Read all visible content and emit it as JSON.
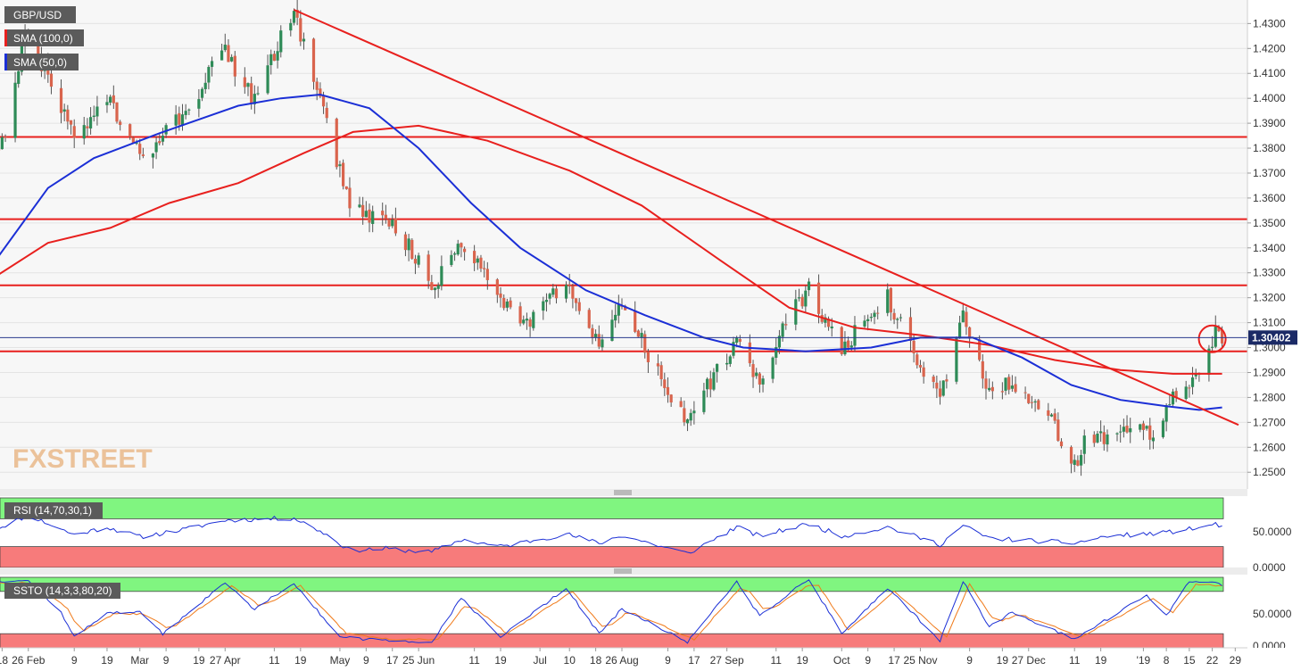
{
  "panels": {
    "main": {
      "instrument_label": "GBP/USD",
      "indicators": [
        {
          "label": "SMA (100,0)",
          "color": "#e8201e"
        },
        {
          "label": "SMA (50,0)",
          "color": "#1b2fd6"
        }
      ],
      "watermark": "FXSTREET",
      "last_price_label": "1.30402",
      "horizontal_levels": [
        1.3845,
        1.3515,
        1.325,
        1.2985
      ],
      "highlight_circle": {
        "date": "2019-01-22",
        "price": 1.3035
      }
    },
    "rsi": {
      "label": "RSI (14,70,30,1)",
      "ticks": [
        "50.0000",
        "0.0000"
      ]
    },
    "ssto": {
      "label": "SSTO (14,3,3,80,20)",
      "ticks": [
        "50.0000",
        "0.0000"
      ]
    }
  },
  "chart_data": {
    "type": "candlestick",
    "title": "GBP/USD",
    "y_axis": {
      "range": [
        1.244,
        1.438
      ],
      "ticks": [
        "1.4300",
        "1.4200",
        "1.4100",
        "1.4000",
        "1.3900",
        "1.3800",
        "1.3700",
        "1.3600",
        "1.3500",
        "1.3400",
        "1.3300",
        "1.3200",
        "1.3100",
        "1.3000",
        "1.2900",
        "1.2800",
        "1.2700",
        "1.2600",
        "1.2500"
      ]
    },
    "x_axis": {
      "range": [
        "2018-01-16",
        "2019-01-30"
      ],
      "ticks": [
        {
          "label": "18",
          "date": "2018-01-18"
        },
        {
          "label": "26 Feb",
          "date": "2018-01-26"
        },
        {
          "label": "9",
          "date": "2018-02-09"
        },
        {
          "label": "19",
          "date": "2018-02-19"
        },
        {
          "label": "Mar",
          "date": "2018-03-01"
        },
        {
          "label": "9",
          "date": "2018-03-09"
        },
        {
          "label": "19",
          "date": "2018-03-19"
        },
        {
          "label": "27 Apr",
          "date": "2018-03-27"
        },
        {
          "label": "11",
          "date": "2018-04-11"
        },
        {
          "label": "19",
          "date": "2018-04-19"
        },
        {
          "label": "May",
          "date": "2018-05-01"
        },
        {
          "label": "9",
          "date": "2018-05-09"
        },
        {
          "label": "17",
          "date": "2018-05-17"
        },
        {
          "label": "25 Jun",
          "date": "2018-05-25"
        },
        {
          "label": "11",
          "date": "2018-06-11"
        },
        {
          "label": "19",
          "date": "2018-06-19"
        },
        {
          "label": "Jul",
          "date": "2018-07-01"
        },
        {
          "label": "10",
          "date": "2018-07-10"
        },
        {
          "label": "18",
          "date": "2018-07-18"
        },
        {
          "label": "26 Aug",
          "date": "2018-07-26"
        },
        {
          "label": "9",
          "date": "2018-08-09"
        },
        {
          "label": "17",
          "date": "2018-08-17"
        },
        {
          "label": "27 Sep",
          "date": "2018-08-27"
        },
        {
          "label": "11",
          "date": "2018-09-11"
        },
        {
          "label": "19",
          "date": "2018-09-19"
        },
        {
          "label": "Oct",
          "date": "2018-10-01"
        },
        {
          "label": "9",
          "date": "2018-10-09"
        },
        {
          "label": "17",
          "date": "2018-10-17"
        },
        {
          "label": "25 Nov",
          "date": "2018-10-25"
        },
        {
          "label": "9",
          "date": "2018-11-09"
        },
        {
          "label": "19",
          "date": "2018-11-19"
        },
        {
          "label": "27 Dec",
          "date": "2018-11-27"
        },
        {
          "label": "11",
          "date": "2018-12-11"
        },
        {
          "label": "19",
          "date": "2018-12-19"
        },
        {
          "label": "'19",
          "date": "2019-01-01"
        },
        {
          "label": "8",
          "date": "2019-01-08"
        },
        {
          "label": "15",
          "date": "2019-01-15"
        },
        {
          "label": "22",
          "date": "2019-01-22"
        },
        {
          "label": "29",
          "date": "2019-01-29"
        }
      ]
    },
    "price_path": [
      [
        "2018-01-16",
        1.376
      ],
      [
        "2018-01-19",
        1.387
      ],
      [
        "2018-01-25",
        1.427
      ],
      [
        "2018-01-31",
        1.412
      ],
      [
        "2018-02-09",
        1.383
      ],
      [
        "2018-02-19",
        1.402
      ],
      [
        "2018-03-01",
        1.376
      ],
      [
        "2018-03-15",
        1.395
      ],
      [
        "2018-03-27",
        1.42
      ],
      [
        "2018-04-04",
        1.4
      ],
      [
        "2018-04-17",
        1.434
      ],
      [
        "2018-04-26",
        1.393
      ],
      [
        "2018-05-04",
        1.356
      ],
      [
        "2018-05-15",
        1.352
      ],
      [
        "2018-05-22",
        1.34
      ],
      [
        "2018-05-29",
        1.325
      ],
      [
        "2018-06-07",
        1.342
      ],
      [
        "2018-06-19",
        1.318
      ],
      [
        "2018-06-28",
        1.31
      ],
      [
        "2018-07-09",
        1.326
      ],
      [
        "2018-07-19",
        1.301
      ],
      [
        "2018-07-26",
        1.317
      ],
      [
        "2018-08-02",
        1.3
      ],
      [
        "2018-08-10",
        1.278
      ],
      [
        "2018-08-15",
        1.27
      ],
      [
        "2018-08-21",
        1.285
      ],
      [
        "2018-08-30",
        1.302
      ],
      [
        "2018-09-06",
        1.285
      ],
      [
        "2018-09-13",
        1.309
      ],
      [
        "2018-09-21",
        1.324
      ],
      [
        "2018-09-27",
        1.308
      ],
      [
        "2018-10-01",
        1.298
      ],
      [
        "2018-10-09",
        1.314
      ],
      [
        "2018-10-15",
        1.32
      ],
      [
        "2018-10-22",
        1.301
      ],
      [
        "2018-10-31",
        1.278
      ],
      [
        "2018-11-07",
        1.315
      ],
      [
        "2018-11-15",
        1.281
      ],
      [
        "2018-11-22",
        1.287
      ],
      [
        "2018-12-03",
        1.273
      ],
      [
        "2018-12-11",
        1.252
      ],
      [
        "2018-12-14",
        1.261
      ],
      [
        "2018-12-21",
        1.264
      ],
      [
        "2019-01-02",
        1.27
      ],
      [
        "2019-01-03",
        1.262
      ],
      [
        "2019-01-08",
        1.277
      ],
      [
        "2019-01-15",
        1.286
      ],
      [
        "2019-01-18",
        1.288
      ],
      [
        "2019-01-21",
        1.296
      ],
      [
        "2019-01-23",
        1.306
      ],
      [
        "2019-01-25",
        1.304
      ]
    ],
    "series": [
      {
        "name": "SMA (100,0)",
        "color": "#e8201e",
        "points": [
          [
            "2018-01-16",
            1.3285
          ],
          [
            "2018-02-01",
            1.342
          ],
          [
            "2018-02-20",
            1.348
          ],
          [
            "2018-03-10",
            1.358
          ],
          [
            "2018-03-31",
            1.366
          ],
          [
            "2018-04-20",
            1.378
          ],
          [
            "2018-05-05",
            1.3865
          ],
          [
            "2018-05-25",
            1.389
          ],
          [
            "2018-06-15",
            1.383
          ],
          [
            "2018-07-10",
            1.371
          ],
          [
            "2018-08-01",
            1.357
          ],
          [
            "2018-08-25",
            1.335
          ],
          [
            "2018-09-15",
            1.316
          ],
          [
            "2018-10-05",
            1.308
          ],
          [
            "2018-10-25",
            1.305
          ],
          [
            "2018-11-15",
            1.301
          ],
          [
            "2018-12-05",
            1.295
          ],
          [
            "2018-12-25",
            1.291
          ],
          [
            "2019-01-10",
            1.2895
          ],
          [
            "2019-01-25",
            1.2895
          ]
        ]
      },
      {
        "name": "SMA (50,0)",
        "color": "#1b2fd6",
        "points": [
          [
            "2018-01-16",
            1.335
          ],
          [
            "2018-02-01",
            1.364
          ],
          [
            "2018-02-15",
            1.376
          ],
          [
            "2018-03-07",
            1.386
          ],
          [
            "2018-03-31",
            1.397
          ],
          [
            "2018-04-13",
            1.4
          ],
          [
            "2018-04-25",
            1.4015
          ],
          [
            "2018-05-10",
            1.396
          ],
          [
            "2018-05-25",
            1.38
          ],
          [
            "2018-06-10",
            1.358
          ],
          [
            "2018-06-25",
            1.34
          ],
          [
            "2018-07-15",
            1.323
          ],
          [
            "2018-08-02",
            1.313
          ],
          [
            "2018-08-20",
            1.304
          ],
          [
            "2018-09-01",
            1.3
          ],
          [
            "2018-09-20",
            1.2985
          ],
          [
            "2018-10-10",
            1.3
          ],
          [
            "2018-10-25",
            1.304
          ],
          [
            "2018-11-10",
            1.304
          ],
          [
            "2018-11-25",
            1.296
          ],
          [
            "2018-12-10",
            1.285
          ],
          [
            "2018-12-25",
            1.279
          ],
          [
            "2019-01-08",
            1.2765
          ],
          [
            "2019-01-18",
            1.275
          ],
          [
            "2019-01-25",
            1.276
          ]
        ]
      },
      {
        "name": "Downtrend line",
        "color": "#e8201e",
        "points": [
          [
            "2018-04-17",
            1.4355
          ],
          [
            "2019-01-30",
            1.269
          ]
        ]
      }
    ],
    "rsi": {
      "range": [
        0,
        100
      ],
      "overbought": 70,
      "oversold": 30,
      "points": [
        [
          "2018-01-16",
          55
        ],
        [
          "2018-01-26",
          75
        ],
        [
          "2018-02-09",
          47
        ],
        [
          "2018-02-19",
          58
        ],
        [
          "2018-03-01",
          44
        ],
        [
          "2018-03-15",
          55
        ],
        [
          "2018-03-27",
          68
        ],
        [
          "2018-04-17",
          71
        ],
        [
          "2018-04-26",
          50
        ],
        [
          "2018-05-04",
          25
        ],
        [
          "2018-05-15",
          27
        ],
        [
          "2018-05-29",
          22
        ],
        [
          "2018-06-07",
          40
        ],
        [
          "2018-06-19",
          30
        ],
        [
          "2018-07-09",
          48
        ],
        [
          "2018-07-19",
          35
        ],
        [
          "2018-07-26",
          46
        ],
        [
          "2018-08-15",
          20
        ],
        [
          "2018-08-30",
          58
        ],
        [
          "2018-09-06",
          45
        ],
        [
          "2018-09-21",
          63
        ],
        [
          "2018-10-01",
          45
        ],
        [
          "2018-10-15",
          58
        ],
        [
          "2018-10-31",
          33
        ],
        [
          "2018-11-07",
          60
        ],
        [
          "2018-11-15",
          42
        ],
        [
          "2018-12-11",
          35
        ],
        [
          "2018-12-21",
          45
        ],
        [
          "2019-01-08",
          50
        ],
        [
          "2019-01-18",
          57
        ],
        [
          "2019-01-23",
          62
        ],
        [
          "2019-01-25",
          60
        ]
      ]
    },
    "ssto": {
      "range": [
        0,
        100
      ],
      "overbought": 80,
      "oversold": 20,
      "k": [
        [
          "2018-01-16",
          95
        ],
        [
          "2018-01-26",
          95
        ],
        [
          "2018-02-05",
          50
        ],
        [
          "2018-02-09",
          15
        ],
        [
          "2018-02-19",
          50
        ],
        [
          "2018-03-01",
          50
        ],
        [
          "2018-03-08",
          20
        ],
        [
          "2018-03-27",
          92
        ],
        [
          "2018-04-05",
          55
        ],
        [
          "2018-04-17",
          92
        ],
        [
          "2018-05-01",
          15
        ],
        [
          "2018-05-15",
          10
        ],
        [
          "2018-05-29",
          8
        ],
        [
          "2018-06-07",
          70
        ],
        [
          "2018-06-19",
          15
        ],
        [
          "2018-07-09",
          85
        ],
        [
          "2018-07-19",
          20
        ],
        [
          "2018-07-26",
          55
        ],
        [
          "2018-08-15",
          8
        ],
        [
          "2018-08-30",
          95
        ],
        [
          "2018-09-06",
          45
        ],
        [
          "2018-09-21",
          98
        ],
        [
          "2018-10-01",
          20
        ],
        [
          "2018-10-15",
          85
        ],
        [
          "2018-10-31",
          10
        ],
        [
          "2018-11-07",
          95
        ],
        [
          "2018-11-15",
          30
        ],
        [
          "2018-11-22",
          50
        ],
        [
          "2018-12-11",
          12
        ],
        [
          "2019-01-02",
          75
        ],
        [
          "2019-01-08",
          45
        ],
        [
          "2019-01-15",
          95
        ],
        [
          "2019-01-25",
          90
        ]
      ],
      "d": [
        [
          "2018-01-16",
          92
        ],
        [
          "2018-01-28",
          92
        ],
        [
          "2018-02-07",
          55
        ],
        [
          "2018-02-11",
          22
        ],
        [
          "2018-02-21",
          48
        ],
        [
          "2018-03-03",
          48
        ],
        [
          "2018-03-10",
          25
        ],
        [
          "2018-03-29",
          88
        ],
        [
          "2018-04-07",
          58
        ],
        [
          "2018-04-19",
          88
        ],
        [
          "2018-05-03",
          20
        ],
        [
          "2018-05-17",
          12
        ],
        [
          "2018-05-31",
          12
        ],
        [
          "2018-06-09",
          65
        ],
        [
          "2018-06-21",
          20
        ],
        [
          "2018-07-11",
          80
        ],
        [
          "2018-07-21",
          25
        ],
        [
          "2018-07-28",
          52
        ],
        [
          "2018-08-17",
          12
        ],
        [
          "2018-09-01",
          90
        ],
        [
          "2018-09-08",
          50
        ],
        [
          "2018-09-23",
          95
        ],
        [
          "2018-10-03",
          25
        ],
        [
          "2018-10-17",
          80
        ],
        [
          "2018-11-02",
          15
        ],
        [
          "2018-11-09",
          90
        ],
        [
          "2018-11-17",
          35
        ],
        [
          "2018-11-24",
          48
        ],
        [
          "2018-12-13",
          16
        ],
        [
          "2019-01-04",
          70
        ],
        [
          "2019-01-10",
          50
        ],
        [
          "2019-01-17",
          90
        ],
        [
          "2019-01-25",
          88
        ]
      ],
      "k_color": "#1b2fd6",
      "d_color": "#f07a1a"
    }
  }
}
